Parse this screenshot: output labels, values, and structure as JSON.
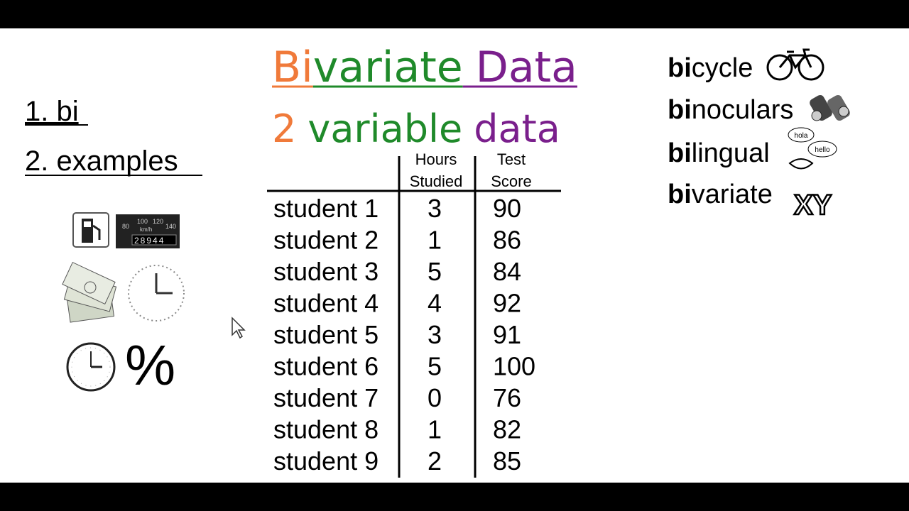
{
  "header": {
    "title_parts": [
      {
        "text": "Bi",
        "color": "#f07a3a"
      },
      {
        "text": "variate",
        "color": "#1f8a2a"
      },
      {
        "text": "Data",
        "color": "#7a1f8c"
      }
    ],
    "subtitle_parts": [
      {
        "text": "2",
        "color": "#f07a3a"
      },
      {
        "text": "variable",
        "color": "#1f8a2a"
      },
      {
        "text": "data",
        "color": "#7a1f8c"
      }
    ]
  },
  "outline": [
    "1. bi",
    "2. examples"
  ],
  "examples": {
    "odometer": "28944",
    "speed_marks": [
      "80",
      "100",
      "120",
      "140"
    ],
    "speed_unit": "km/h",
    "percent": "%"
  },
  "table": {
    "columns": [
      "Hours Studied",
      "Test Score"
    ],
    "rows": [
      [
        "student 1",
        3,
        90
      ],
      [
        "student 2",
        1,
        86
      ],
      [
        "student 3",
        5,
        84
      ],
      [
        "student 4",
        4,
        92
      ],
      [
        "student 5",
        3,
        91
      ],
      [
        "student 6",
        5,
        100
      ],
      [
        "student 7",
        0,
        76
      ],
      [
        "student 8",
        1,
        82
      ],
      [
        "student 9",
        2,
        85
      ]
    ]
  },
  "words": [
    {
      "prefix": "bi",
      "rest": "cycle"
    },
    {
      "prefix": "bi",
      "rest": "noculars"
    },
    {
      "prefix": "bi",
      "rest": "lingual"
    },
    {
      "prefix": "bi",
      "rest": "variate"
    }
  ],
  "icon_texts": {
    "bubble_1": "hola",
    "bubble_2": "hello",
    "xy": "XY"
  }
}
